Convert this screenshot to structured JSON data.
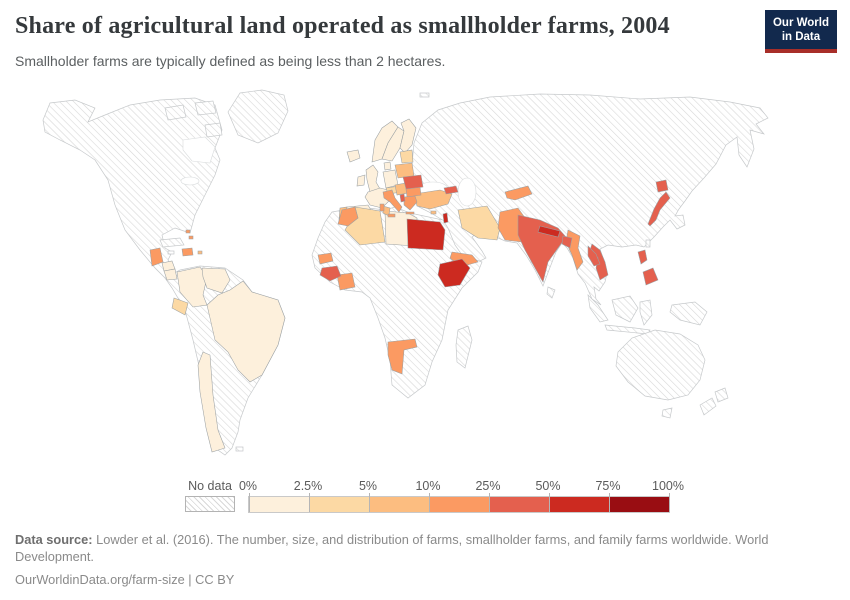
{
  "header": {
    "title": "Share of agricultural land operated as smallholder farms, 2004",
    "subtitle": "Smallholder farms are typically defined as being less than 2 hectares.",
    "logo": {
      "line1": "Our World",
      "line2": "in Data",
      "bg_color": "#12294d",
      "accent_color": "#a82e29"
    }
  },
  "legend": {
    "no_data_label": "No data",
    "tick_labels": [
      "0%",
      "2.5%",
      "5%",
      "10%",
      "25%",
      "50%",
      "75%",
      "100%"
    ],
    "bin_colors": [
      "#fdf0dc",
      "#fcd9a4",
      "#fcbd80",
      "#fb9a62",
      "#e4604e",
      "#cc2a20",
      "#990d12"
    ],
    "no_data_hatch_color": "#d8d8d8"
  },
  "footer": {
    "source_label": "Data source:",
    "source_text": " Lowder et al. (2016). The number, size, and distribution of farms, smallholder farms, and family farms worldwide. World Development.",
    "license_text": "OurWorldinData.org/farm-size | CC BY"
  },
  "chart_data": {
    "type": "choropleth",
    "title": "Share of agricultural land operated as smallholder farms, 2004",
    "unit": "%",
    "bin_edges": [
      0,
      2.5,
      5,
      10,
      25,
      50,
      75,
      100
    ],
    "bins": [
      "0-2.5%",
      "2.5-5%",
      "5-10%",
      "10-25%",
      "25-50%",
      "50-75%",
      "75-100%"
    ],
    "countries": [
      {
        "name": "Brazil",
        "bin": "0-2.5%"
      },
      {
        "name": "Colombia",
        "bin": "0-2.5%"
      },
      {
        "name": "Venezuela",
        "bin": "0-2.5%"
      },
      {
        "name": "Chile",
        "bin": "0-2.5%"
      },
      {
        "name": "Honduras",
        "bin": "0-2.5%"
      },
      {
        "name": "Nicaragua",
        "bin": "0-2.5%"
      },
      {
        "name": "Norway",
        "bin": "0-2.5%"
      },
      {
        "name": "Sweden",
        "bin": "0-2.5%"
      },
      {
        "name": "Finland",
        "bin": "0-2.5%"
      },
      {
        "name": "Denmark",
        "bin": "0-2.5%"
      },
      {
        "name": "United Kingdom",
        "bin": "0-2.5%"
      },
      {
        "name": "Ireland",
        "bin": "0-2.5%"
      },
      {
        "name": "Iceland",
        "bin": "0-2.5%"
      },
      {
        "name": "France",
        "bin": "0-2.5%"
      },
      {
        "name": "Spain",
        "bin": "0-2.5%"
      },
      {
        "name": "Germany",
        "bin": "0-2.5%"
      },
      {
        "name": "Libya",
        "bin": "0-2.5%"
      },
      {
        "name": "Ecuador",
        "bin": "2.5-5%"
      },
      {
        "name": "Algeria",
        "bin": "2.5-5%"
      },
      {
        "name": "Iran",
        "bin": "2.5-5%"
      },
      {
        "name": "Lithuania",
        "bin": "2.5-5%"
      },
      {
        "name": "Austria",
        "bin": "2.5-5%"
      },
      {
        "name": "Poland",
        "bin": "5-10%"
      },
      {
        "name": "Portugal",
        "bin": "5-10%"
      },
      {
        "name": "Turkey",
        "bin": "5-10%"
      },
      {
        "name": "Tunisia",
        "bin": "5-10%"
      },
      {
        "name": "Croatia",
        "bin": "5-10%"
      },
      {
        "name": "Cyprus",
        "bin": "5-10%"
      },
      {
        "name": "Puerto Rico",
        "bin": "5-10%"
      },
      {
        "name": "Italy",
        "bin": "10-25%"
      },
      {
        "name": "Morocco",
        "bin": "10-25%"
      },
      {
        "name": "Pakistan",
        "bin": "10-25%"
      },
      {
        "name": "Myanmar",
        "bin": "10-25%"
      },
      {
        "name": "Senegal",
        "bin": "10-25%"
      },
      {
        "name": "Côte d'Ivoire",
        "bin": "10-25%"
      },
      {
        "name": "Namibia",
        "bin": "10-25%"
      },
      {
        "name": "Yemen",
        "bin": "10-25%"
      },
      {
        "name": "Kyrgyzstan",
        "bin": "10-25%"
      },
      {
        "name": "Bulgaria",
        "bin": "10-25%"
      },
      {
        "name": "Greece",
        "bin": "10-25%"
      },
      {
        "name": "Dominican Republic",
        "bin": "10-25%"
      },
      {
        "name": "Guatemala",
        "bin": "10-25%"
      },
      {
        "name": "Bahamas",
        "bin": "10-25%"
      },
      {
        "name": "India",
        "bin": "25-50%"
      },
      {
        "name": "Japan",
        "bin": "25-50%"
      },
      {
        "name": "Philippines",
        "bin": "25-50%"
      },
      {
        "name": "Vietnam",
        "bin": "25-50%"
      },
      {
        "name": "Laos",
        "bin": "25-50%"
      },
      {
        "name": "Romania",
        "bin": "25-50%"
      },
      {
        "name": "Georgia",
        "bin": "25-50%"
      },
      {
        "name": "Guinea",
        "bin": "25-50%"
      },
      {
        "name": "Bangladesh",
        "bin": "25-50%"
      },
      {
        "name": "Albania",
        "bin": "25-50%"
      },
      {
        "name": "Egypt",
        "bin": "50-75%"
      },
      {
        "name": "Ethiopia",
        "bin": "50-75%"
      },
      {
        "name": "Nepal",
        "bin": "50-75%"
      },
      {
        "name": "Lebanon",
        "bin": "50-75%"
      }
    ],
    "no_data_examples": [
      "United States",
      "Canada",
      "Mexico",
      "Peru",
      "Bolivia",
      "Argentina",
      "Paraguay",
      "Russia",
      "China",
      "Kazakhstan",
      "Saudi Arabia",
      "Australia",
      "Indonesia",
      "Thailand",
      "South Africa",
      "most of Sub-Saharan Africa"
    ]
  }
}
